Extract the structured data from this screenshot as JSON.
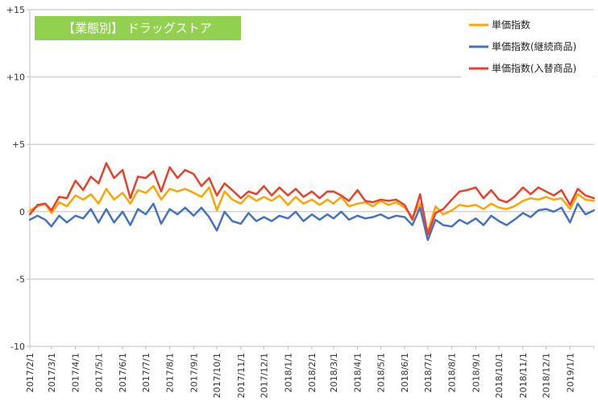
{
  "chart_data": {
    "type": "line",
    "title": "【業態別】 ドラッグストア",
    "title_bg_color": "#92d050",
    "ylim": [
      -10,
      15
    ],
    "yticks": [
      {
        "value": 15,
        "label": "+15"
      },
      {
        "value": 10,
        "label": "+10"
      },
      {
        "value": 5,
        "label": "+5"
      },
      {
        "value": 0,
        "label": "0"
      },
      {
        "value": -5,
        "label": "-5"
      },
      {
        "value": -10,
        "label": "-10"
      }
    ],
    "x_tick_labels": [
      "2017/2/1",
      "2017/3/1",
      "2017/4/1",
      "2017/5/1",
      "2017/6/1",
      "2017/7/1",
      "2017/8/1",
      "2017/9/1",
      "2017/10/1",
      "2017/11/1",
      "2017/12/1",
      "2018/1/1",
      "2018/2/1",
      "2018/3/1",
      "2018/4/1",
      "2018/5/1",
      "2018/6/1",
      "2018/7/1",
      "2018/8/1",
      "2018/9/1",
      "2018/10/1",
      "2018/11/1",
      "2018/12/1",
      "2019/1/1"
    ],
    "x_range": [
      "2017/2/1",
      "2019/2/1"
    ],
    "legend_position": "top-right",
    "grid": "horizontal",
    "series": [
      {
        "name": "単価指数",
        "color": "#ffa500",
        "points": [
          [
            "2017/2/1",
            0.1
          ],
          [
            "2017/2/11",
            0.4
          ],
          [
            "2017/2/21",
            0.6
          ],
          [
            "2017/3/1",
            -0.1
          ],
          [
            "2017/3/11",
            0.7
          ],
          [
            "2017/3/21",
            0.4
          ],
          [
            "2017/4/1",
            1.2
          ],
          [
            "2017/4/11",
            0.9
          ],
          [
            "2017/4/21",
            1.3
          ],
          [
            "2017/5/1",
            0.6
          ],
          [
            "2017/5/11",
            1.7
          ],
          [
            "2017/5/21",
            0.9
          ],
          [
            "2017/6/1",
            1.4
          ],
          [
            "2017/6/11",
            0.6
          ],
          [
            "2017/6/21",
            1.6
          ],
          [
            "2017/7/1",
            1.4
          ],
          [
            "2017/7/11",
            1.9
          ],
          [
            "2017/7/21",
            0.9
          ],
          [
            "2017/8/1",
            1.7
          ],
          [
            "2017/8/11",
            1.5
          ],
          [
            "2017/8/21",
            1.7
          ],
          [
            "2017/9/1",
            1.4
          ],
          [
            "2017/9/11",
            1.1
          ],
          [
            "2017/9/21",
            1.8
          ],
          [
            "2017/10/1",
            0.1
          ],
          [
            "2017/10/11",
            1.5
          ],
          [
            "2017/10/21",
            0.9
          ],
          [
            "2017/11/1",
            0.6
          ],
          [
            "2017/11/11",
            1.2
          ],
          [
            "2017/11/21",
            0.8
          ],
          [
            "2017/12/1",
            1.1
          ],
          [
            "2017/12/11",
            0.8
          ],
          [
            "2017/12/21",
            1.2
          ],
          [
            "2018/1/1",
            0.5
          ],
          [
            "2018/1/11",
            1.1
          ],
          [
            "2018/1/21",
            0.6
          ],
          [
            "2018/2/1",
            0.9
          ],
          [
            "2018/2/11",
            0.5
          ],
          [
            "2018/2/21",
            0.9
          ],
          [
            "2018/3/1",
            0.6
          ],
          [
            "2018/3/11",
            1.1
          ],
          [
            "2018/3/21",
            0.4
          ],
          [
            "2018/4/1",
            0.6
          ],
          [
            "2018/4/11",
            0.7
          ],
          [
            "2018/4/21",
            0.4
          ],
          [
            "2018/5/1",
            0.8
          ],
          [
            "2018/5/11",
            0.5
          ],
          [
            "2018/5/21",
            0.7
          ],
          [
            "2018/6/1",
            0.3
          ],
          [
            "2018/6/11",
            -0.4
          ],
          [
            "2018/6/21",
            0.6
          ],
          [
            "2018/7/1",
            -1.5
          ],
          [
            "2018/7/11",
            0.4
          ],
          [
            "2018/7/21",
            -0.2
          ],
          [
            "2018/8/1",
            0.1
          ],
          [
            "2018/8/11",
            0.5
          ],
          [
            "2018/8/21",
            0.4
          ],
          [
            "2018/9/1",
            0.5
          ],
          [
            "2018/9/11",
            0.2
          ],
          [
            "2018/9/21",
            0.6
          ],
          [
            "2018/10/1",
            0.3
          ],
          [
            "2018/10/11",
            0.2
          ],
          [
            "2018/10/21",
            0.4
          ],
          [
            "2018/11/1",
            0.8
          ],
          [
            "2018/11/11",
            1.0
          ],
          [
            "2018/11/21",
            0.9
          ],
          [
            "2018/12/1",
            1.1
          ],
          [
            "2018/12/11",
            0.9
          ],
          [
            "2018/12/21",
            1.0
          ],
          [
            "2019/1/1",
            0.2
          ],
          [
            "2019/1/11",
            1.3
          ],
          [
            "2019/1/21",
            0.9
          ],
          [
            "2019/2/1",
            0.8
          ]
        ]
      },
      {
        "name": "単価指数(継続商品)",
        "color": "#4472c4",
        "points": [
          [
            "2017/2/1",
            -0.6
          ],
          [
            "2017/2/11",
            -0.3
          ],
          [
            "2017/2/21",
            -0.6
          ],
          [
            "2017/3/1",
            -1.1
          ],
          [
            "2017/3/11",
            -0.3
          ],
          [
            "2017/3/21",
            -0.8
          ],
          [
            "2017/4/1",
            -0.3
          ],
          [
            "2017/4/11",
            -0.5
          ],
          [
            "2017/4/21",
            0.2
          ],
          [
            "2017/5/1",
            -0.8
          ],
          [
            "2017/5/11",
            0.2
          ],
          [
            "2017/5/21",
            -0.8
          ],
          [
            "2017/6/1",
            0.0
          ],
          [
            "2017/6/11",
            -1.0
          ],
          [
            "2017/6/21",
            0.2
          ],
          [
            "2017/7/1",
            -0.2
          ],
          [
            "2017/7/11",
            0.6
          ],
          [
            "2017/7/21",
            -0.9
          ],
          [
            "2017/8/1",
            0.2
          ],
          [
            "2017/8/11",
            -0.2
          ],
          [
            "2017/8/21",
            0.3
          ],
          [
            "2017/9/1",
            -0.3
          ],
          [
            "2017/9/11",
            0.3
          ],
          [
            "2017/9/21",
            -0.4
          ],
          [
            "2017/10/1",
            -1.4
          ],
          [
            "2017/10/11",
            0.0
          ],
          [
            "2017/10/21",
            -0.7
          ],
          [
            "2017/11/1",
            -0.9
          ],
          [
            "2017/11/11",
            -0.1
          ],
          [
            "2017/11/21",
            -0.7
          ],
          [
            "2017/12/1",
            -0.4
          ],
          [
            "2017/12/11",
            -0.7
          ],
          [
            "2017/12/21",
            -0.3
          ],
          [
            "2018/1/1",
            -0.5
          ],
          [
            "2018/1/11",
            0.0
          ],
          [
            "2018/1/21",
            -0.7
          ],
          [
            "2018/2/1",
            -0.2
          ],
          [
            "2018/2/11",
            -0.6
          ],
          [
            "2018/2/21",
            -0.2
          ],
          [
            "2018/3/1",
            -0.5
          ],
          [
            "2018/3/11",
            0.0
          ],
          [
            "2018/3/21",
            -0.6
          ],
          [
            "2018/4/1",
            -0.3
          ],
          [
            "2018/4/11",
            -0.5
          ],
          [
            "2018/4/21",
            -0.4
          ],
          [
            "2018/5/1",
            -0.2
          ],
          [
            "2018/5/11",
            -0.5
          ],
          [
            "2018/5/21",
            -0.3
          ],
          [
            "2018/6/1",
            -0.4
          ],
          [
            "2018/6/11",
            -1.0
          ],
          [
            "2018/6/21",
            0.3
          ],
          [
            "2018/7/1",
            -2.1
          ],
          [
            "2018/7/11",
            -0.6
          ],
          [
            "2018/7/21",
            -1.0
          ],
          [
            "2018/8/1",
            -1.1
          ],
          [
            "2018/8/11",
            -0.6
          ],
          [
            "2018/8/21",
            -0.9
          ],
          [
            "2018/9/1",
            -0.5
          ],
          [
            "2018/9/11",
            -1.0
          ],
          [
            "2018/9/21",
            -0.3
          ],
          [
            "2018/10/1",
            -0.7
          ],
          [
            "2018/10/11",
            -1.0
          ],
          [
            "2018/10/21",
            -0.6
          ],
          [
            "2018/11/1",
            -0.1
          ],
          [
            "2018/11/11",
            -0.4
          ],
          [
            "2018/11/21",
            0.1
          ],
          [
            "2018/12/1",
            0.2
          ],
          [
            "2018/12/11",
            0.0
          ],
          [
            "2018/12/21",
            0.3
          ],
          [
            "2019/1/1",
            -0.8
          ],
          [
            "2019/1/11",
            0.6
          ],
          [
            "2019/1/21",
            -0.2
          ],
          [
            "2019/2/1",
            0.1
          ]
        ]
      },
      {
        "name": "単価指数(入替商品)",
        "color": "#e8412c",
        "points": [
          [
            "2017/2/1",
            -0.2
          ],
          [
            "2017/2/11",
            0.5
          ],
          [
            "2017/2/21",
            0.6
          ],
          [
            "2017/3/1",
            0.1
          ],
          [
            "2017/3/11",
            1.1
          ],
          [
            "2017/3/21",
            1.0
          ],
          [
            "2017/4/1",
            2.3
          ],
          [
            "2017/4/11",
            1.6
          ],
          [
            "2017/4/21",
            2.6
          ],
          [
            "2017/5/1",
            2.1
          ],
          [
            "2017/5/11",
            3.6
          ],
          [
            "2017/5/21",
            2.5
          ],
          [
            "2017/6/1",
            3.1
          ],
          [
            "2017/6/11",
            1.0
          ],
          [
            "2017/6/21",
            2.6
          ],
          [
            "2017/7/1",
            2.5
          ],
          [
            "2017/7/11",
            3.0
          ],
          [
            "2017/7/21",
            1.5
          ],
          [
            "2017/8/1",
            3.3
          ],
          [
            "2017/8/11",
            2.5
          ],
          [
            "2017/8/21",
            3.1
          ],
          [
            "2017/9/1",
            2.8
          ],
          [
            "2017/9/11",
            1.9
          ],
          [
            "2017/9/21",
            2.5
          ],
          [
            "2017/10/1",
            1.2
          ],
          [
            "2017/10/11",
            2.1
          ],
          [
            "2017/10/21",
            1.6
          ],
          [
            "2017/11/1",
            1.0
          ],
          [
            "2017/11/11",
            1.5
          ],
          [
            "2017/11/21",
            1.3
          ],
          [
            "2017/12/1",
            1.9
          ],
          [
            "2017/12/11",
            1.2
          ],
          [
            "2017/12/21",
            1.8
          ],
          [
            "2018/1/1",
            1.2
          ],
          [
            "2018/1/11",
            1.7
          ],
          [
            "2018/1/21",
            1.1
          ],
          [
            "2018/2/1",
            1.5
          ],
          [
            "2018/2/11",
            1.0
          ],
          [
            "2018/2/21",
            1.5
          ],
          [
            "2018/3/1",
            1.5
          ],
          [
            "2018/3/11",
            1.2
          ],
          [
            "2018/3/21",
            0.8
          ],
          [
            "2018/4/1",
            1.6
          ],
          [
            "2018/4/11",
            0.8
          ],
          [
            "2018/4/21",
            0.7
          ],
          [
            "2018/5/1",
            0.9
          ],
          [
            "2018/5/11",
            0.8
          ],
          [
            "2018/5/21",
            0.9
          ],
          [
            "2018/6/1",
            0.5
          ],
          [
            "2018/6/11",
            -0.6
          ],
          [
            "2018/6/21",
            1.3
          ],
          [
            "2018/7/1",
            -1.7
          ],
          [
            "2018/7/11",
            -0.1
          ],
          [
            "2018/7/21",
            0.2
          ],
          [
            "2018/8/1",
            0.9
          ],
          [
            "2018/8/11",
            1.5
          ],
          [
            "2018/8/21",
            1.6
          ],
          [
            "2018/9/1",
            1.8
          ],
          [
            "2018/9/11",
            1.0
          ],
          [
            "2018/9/21",
            1.6
          ],
          [
            "2018/10/1",
            0.9
          ],
          [
            "2018/10/11",
            0.7
          ],
          [
            "2018/10/21",
            1.1
          ],
          [
            "2018/11/1",
            1.8
          ],
          [
            "2018/11/11",
            1.3
          ],
          [
            "2018/11/21",
            1.8
          ],
          [
            "2018/12/1",
            1.5
          ],
          [
            "2018/12/11",
            1.2
          ],
          [
            "2018/12/21",
            1.6
          ],
          [
            "2019/1/1",
            0.5
          ],
          [
            "2019/1/11",
            1.7
          ],
          [
            "2019/1/21",
            1.2
          ],
          [
            "2019/2/1",
            1.0
          ]
        ]
      }
    ]
  }
}
